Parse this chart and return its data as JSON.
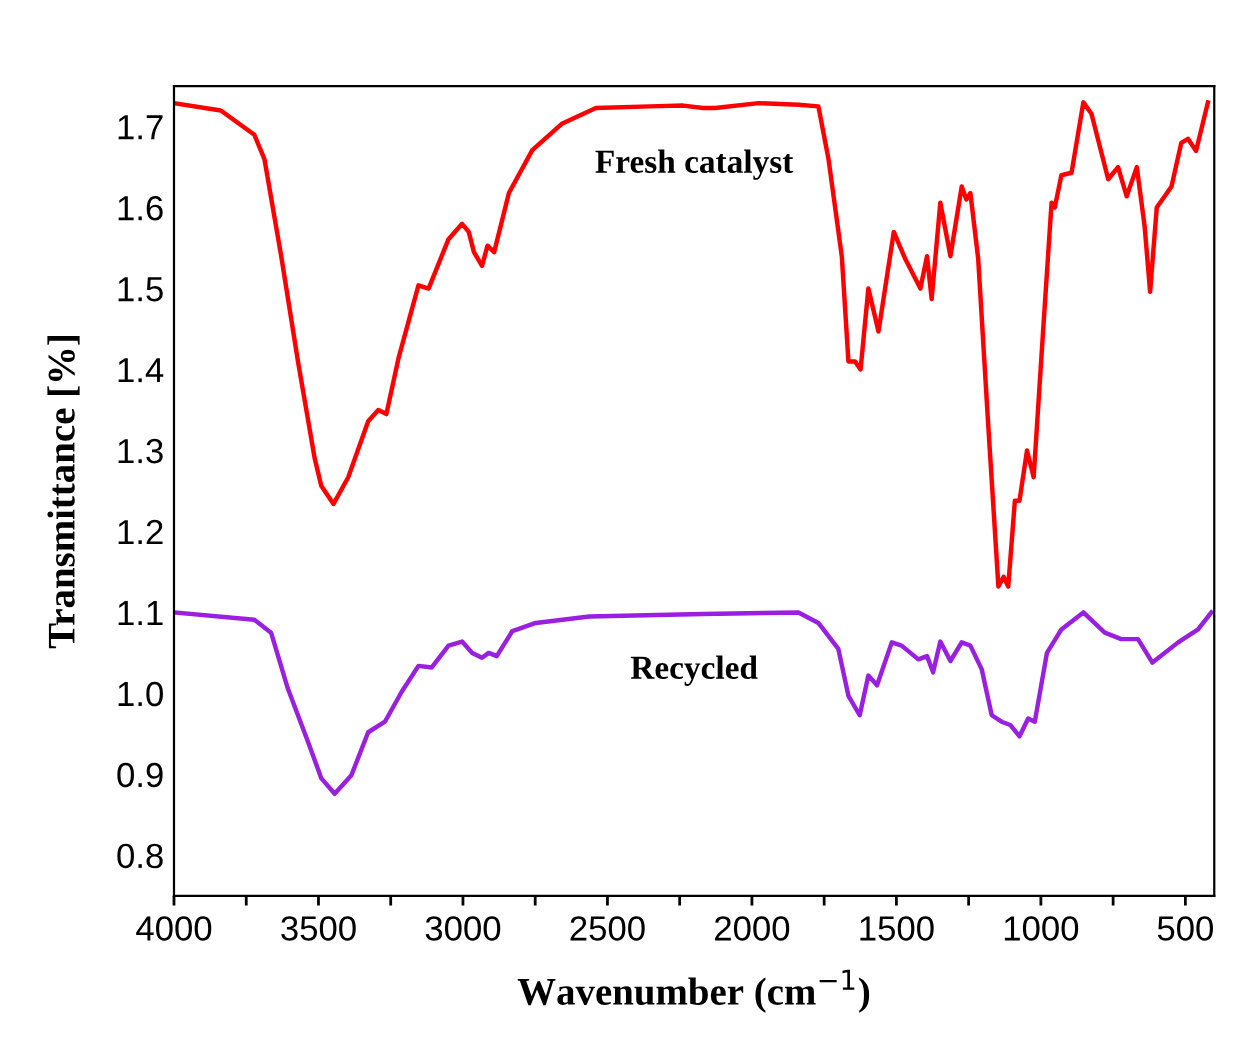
{
  "chart_data": {
    "type": "line",
    "xlabel": "Wavenumber (cm$^{−1}$)",
    "ylabel": "Transmittance [%]",
    "xlim": [
      4000,
      400
    ],
    "ylim": [
      0.75,
      1.75
    ],
    "xticks": [
      4000,
      {
        "value": 3750,
        "label": null
      },
      3500,
      {
        "value": 3250,
        "label": null
      },
      3000,
      {
        "value": 2750,
        "label": null
      },
      2500,
      {
        "value": 2250,
        "label": null
      },
      2000,
      {
        "value": 1750,
        "label": null
      },
      1500,
      {
        "value": 1250,
        "label": null
      },
      1000,
      {
        "value": 750,
        "label": null
      },
      500
    ],
    "yticks": [
      0.8,
      0.9,
      {
        "value": 1.0,
        "label": "1.0"
      },
      1.1,
      1.2,
      1.3,
      1.4,
      1.5,
      1.6,
      1.7
    ],
    "grid": false,
    "legend": false,
    "marker": "none",
    "line_style": "solid",
    "series": [
      {
        "name": "Fresh catalyst",
        "color": "#ff0000",
        "x": [
          4000,
          3838,
          3722,
          3687,
          3629,
          3571,
          3513,
          3490,
          3448,
          3397,
          3328,
          3293,
          3265,
          3223,
          3154,
          3119,
          3050,
          3003,
          2980,
          2962,
          2934,
          2915,
          2892,
          2841,
          2760,
          2656,
          2540,
          2354,
          2238,
          2169,
          2127,
          1977,
          1839,
          1770,
          1735,
          1689,
          1666,
          1643,
          1624,
          1597,
          1562,
          1509,
          1470,
          1417,
          1394,
          1378,
          1348,
          1313,
          1274,
          1258,
          1244,
          1217,
          1182,
          1147,
          1129,
          1113,
          1090,
          1074,
          1048,
          1025,
          991,
          963,
          952,
          929,
          894,
          853,
          825,
          767,
          733,
          703,
          668,
          641,
          622,
          599,
          548,
          514,
          491,
          463,
          422
        ],
        "values": [
          1.729,
          1.72,
          1.69,
          1.66,
          1.54,
          1.41,
          1.29,
          1.256,
          1.234,
          1.267,
          1.336,
          1.35,
          1.345,
          1.414,
          1.504,
          1.5,
          1.561,
          1.58,
          1.57,
          1.545,
          1.528,
          1.553,
          1.545,
          1.618,
          1.671,
          1.704,
          1.723,
          1.725,
          1.726,
          1.723,
          1.723,
          1.729,
          1.727,
          1.725,
          1.66,
          1.54,
          1.41,
          1.41,
          1.4,
          1.5,
          1.447,
          1.57,
          1.537,
          1.5,
          1.54,
          1.487,
          1.606,
          1.54,
          1.626,
          1.61,
          1.618,
          1.537,
          1.33,
          1.132,
          1.144,
          1.132,
          1.238,
          1.238,
          1.3,
          1.267,
          1.455,
          1.606,
          1.6,
          1.64,
          1.643,
          1.73,
          1.716,
          1.635,
          1.65,
          1.614,
          1.65,
          1.577,
          1.496,
          1.6,
          1.626,
          1.68,
          1.685,
          1.67,
          1.73
        ]
      },
      {
        "name": "Recycled",
        "color": "#9b1fe0",
        "x": [
          4000,
          3722,
          3664,
          3606,
          3536,
          3490,
          3444,
          3386,
          3328,
          3270,
          3212,
          3154,
          3108,
          3050,
          3003,
          2968,
          2934,
          2911,
          2883,
          2829,
          2748,
          2563,
          2169,
          1839,
          1770,
          1701,
          1666,
          1627,
          1597,
          1567,
          1516,
          1482,
          1424,
          1394,
          1373,
          1348,
          1313,
          1274,
          1244,
          1205,
          1170,
          1136,
          1106,
          1074,
          1044,
          1021,
          979,
          929,
          853,
          779,
          722,
          664,
          614,
          525,
          456,
          410
        ],
        "values": [
          1.1,
          1.091,
          1.075,
          1.006,
          0.94,
          0.895,
          0.876,
          0.899,
          0.952,
          0.965,
          1.002,
          1.034,
          1.032,
          1.059,
          1.064,
          1.05,
          1.044,
          1.05,
          1.046,
          1.077,
          1.087,
          1.095,
          1.098,
          1.1,
          1.087,
          1.055,
          0.997,
          0.973,
          1.022,
          1.01,
          1.063,
          1.059,
          1.042,
          1.046,
          1.026,
          1.064,
          1.04,
          1.063,
          1.059,
          1.03,
          0.973,
          0.965,
          0.961,
          0.947,
          0.969,
          0.965,
          1.05,
          1.079,
          1.1,
          1.075,
          1.067,
          1.067,
          1.038,
          1.063,
          1.079,
          1.1
        ]
      }
    ]
  }
}
